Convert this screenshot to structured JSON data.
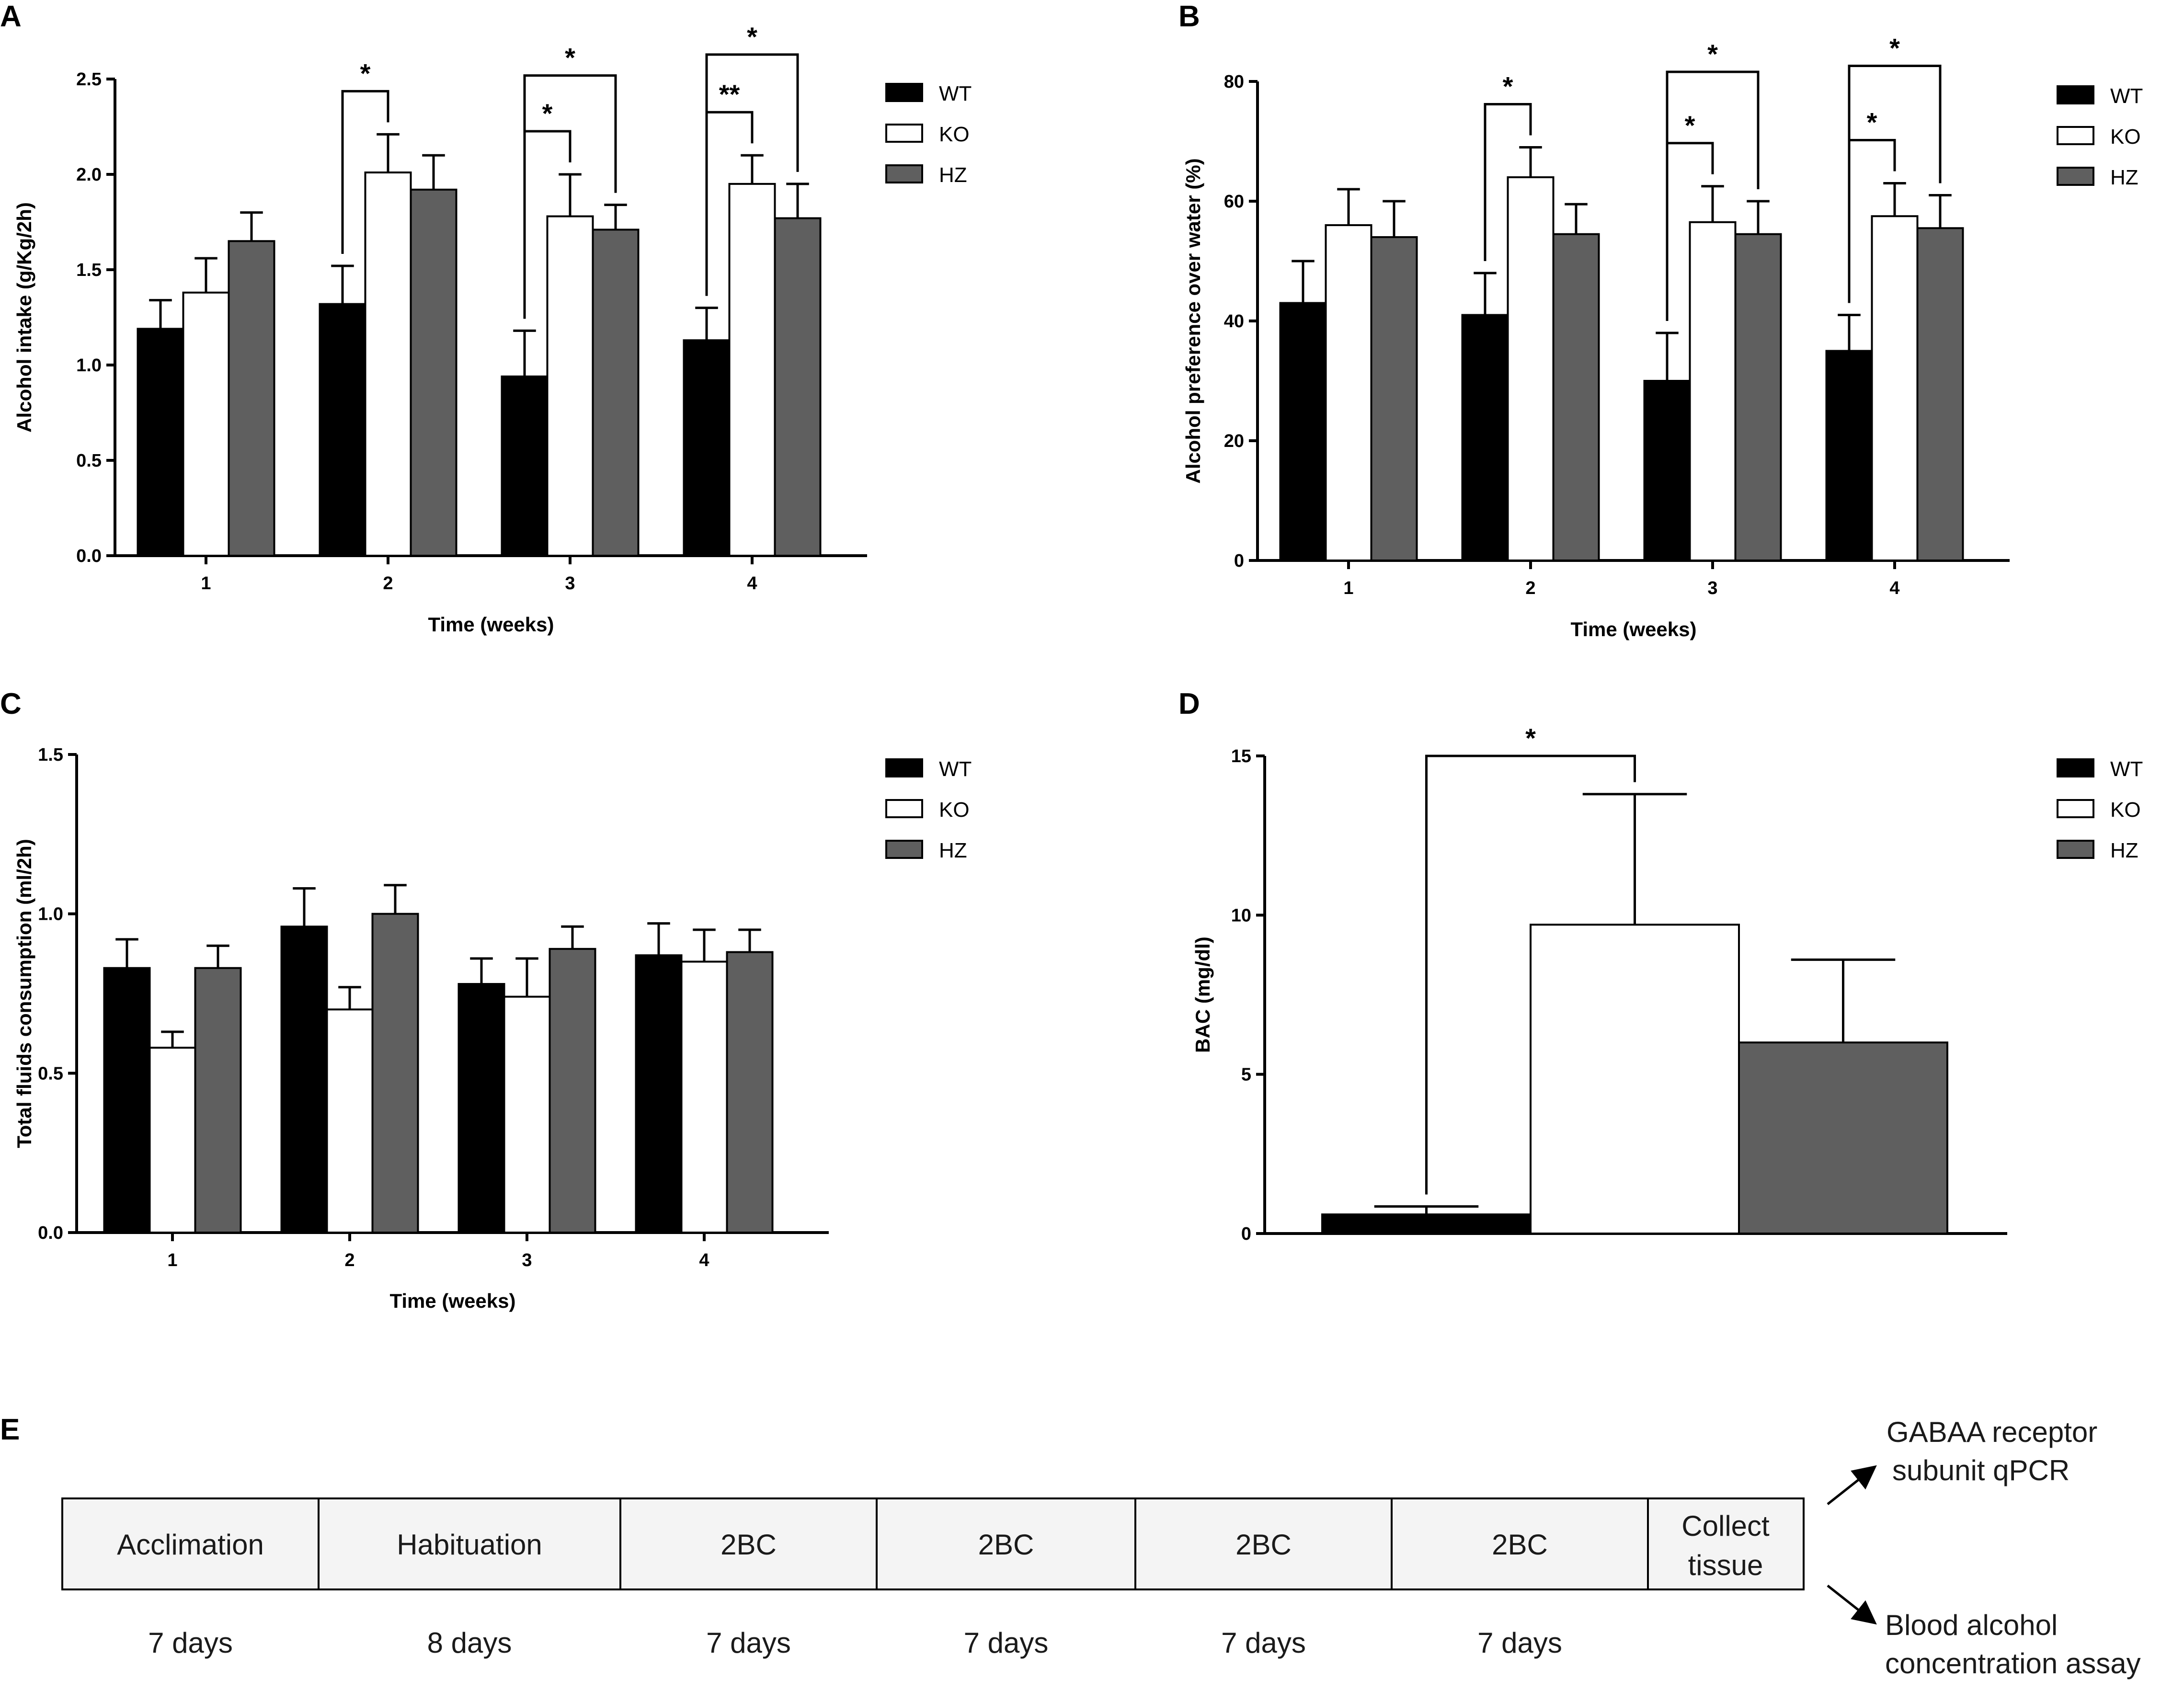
{
  "colors": {
    "WT": "#000000",
    "KO": "#ffffff",
    "HZ": "#5f5f5f"
  },
  "chart_data": [
    {
      "panel": "A",
      "type": "bar",
      "categories": [
        "1",
        "2",
        "3",
        "4"
      ],
      "series": [
        {
          "name": "WT",
          "values": [
            1.19,
            1.32,
            0.94,
            1.13
          ],
          "errors": [
            0.15,
            0.2,
            0.24,
            0.17
          ]
        },
        {
          "name": "KO",
          "values": [
            1.38,
            2.01,
            1.78,
            1.95
          ],
          "errors": [
            0.18,
            0.2,
            0.22,
            0.15
          ]
        },
        {
          "name": "HZ",
          "values": [
            1.65,
            1.92,
            1.71,
            1.77
          ],
          "errors": [
            0.15,
            0.18,
            0.13,
            0.18
          ]
        }
      ],
      "ylim": [
        0,
        2.5
      ],
      "yticks": [
        "0.0",
        "0.5",
        "1.0",
        "1.5",
        "2.0",
        "2.5"
      ],
      "xlabel": "Time (weeks)",
      "ylabel": "Alcohol intake  (g/Kg/2h)",
      "significance": [
        {
          "category": "2",
          "from": "WT",
          "to": "KO",
          "label": "*"
        },
        {
          "category": "3",
          "from": "WT",
          "to": "KO",
          "label": "*"
        },
        {
          "category": "3",
          "from": "WT",
          "to": "HZ",
          "label": "*"
        },
        {
          "category": "4",
          "from": "WT",
          "to": "KO",
          "label": "**"
        },
        {
          "category": "4",
          "from": "WT",
          "to": "HZ",
          "label": "*"
        }
      ]
    },
    {
      "panel": "B",
      "type": "bar",
      "categories": [
        "1",
        "2",
        "3",
        "4"
      ],
      "series": [
        {
          "name": "WT",
          "values": [
            43,
            41,
            30,
            35
          ],
          "errors": [
            7,
            7,
            8,
            6
          ]
        },
        {
          "name": "KO",
          "values": [
            56,
            64,
            56.5,
            57.5
          ],
          "errors": [
            6,
            5,
            6,
            5.5
          ]
        },
        {
          "name": "HZ",
          "values": [
            54,
            54.5,
            54.5,
            55.5
          ],
          "errors": [
            6,
            5,
            5.5,
            5.5
          ]
        }
      ],
      "ylim": [
        0,
        80
      ],
      "yticks": [
        "0",
        "20",
        "40",
        "60",
        "80"
      ],
      "xlabel": "Time (weeks)",
      "ylabel": "Alcohol preference over water (%)",
      "significance": [
        {
          "category": "2",
          "from": "WT",
          "to": "KO",
          "label": "*"
        },
        {
          "category": "3",
          "from": "WT",
          "to": "KO",
          "label": "*"
        },
        {
          "category": "3",
          "from": "WT",
          "to": "HZ",
          "label": "*"
        },
        {
          "category": "4",
          "from": "WT",
          "to": "KO",
          "label": "*"
        },
        {
          "category": "4",
          "from": "WT",
          "to": "HZ",
          "label": "*"
        }
      ]
    },
    {
      "panel": "C",
      "type": "bar",
      "categories": [
        "1",
        "2",
        "3",
        "4"
      ],
      "series": [
        {
          "name": "WT",
          "values": [
            0.83,
            0.96,
            0.78,
            0.87
          ],
          "errors": [
            0.09,
            0.12,
            0.08,
            0.1
          ]
        },
        {
          "name": "KO",
          "values": [
            0.58,
            0.7,
            0.74,
            0.85
          ],
          "errors": [
            0.05,
            0.07,
            0.12,
            0.1
          ]
        },
        {
          "name": "HZ",
          "values": [
            0.83,
            1.0,
            0.89,
            0.88
          ],
          "errors": [
            0.07,
            0.09,
            0.07,
            0.07
          ]
        }
      ],
      "ylim": [
        0,
        1.5
      ],
      "yticks": [
        "0.0",
        "0.5",
        "1.0",
        "1.5"
      ],
      "xlabel": "Time (weeks)",
      "ylabel": "Total fluids consumption (ml/2h)",
      "significance": []
    },
    {
      "panel": "D",
      "type": "bar",
      "categories": [
        ""
      ],
      "series": [
        {
          "name": "WT",
          "values": [
            0.6
          ],
          "errors": [
            0.25
          ]
        },
        {
          "name": "KO",
          "values": [
            9.7
          ],
          "errors": [
            4.1
          ]
        },
        {
          "name": "HZ",
          "values": [
            6.0
          ],
          "errors": [
            2.6
          ]
        }
      ],
      "ylim": [
        0,
        15
      ],
      "yticks": [
        "0",
        "5",
        "10",
        "15"
      ],
      "xlabel": "",
      "ylabel": "BAC (mg/dl)",
      "significance": [
        {
          "category": "",
          "from": "WT",
          "to": "KO",
          "label": "*"
        }
      ]
    }
  ],
  "timeline": {
    "panel": "E",
    "boxes": [
      "Acclimation",
      "Habituation",
      "2BC",
      "2BC",
      "2BC",
      "2BC"
    ],
    "collect": [
      "Collect",
      "tissue"
    ],
    "durations": [
      "7 days",
      "8 days",
      "7 days",
      "7 days",
      "7 days",
      "7 days"
    ],
    "outputs": {
      "top": [
        "GABAA receptor",
        "subunit qPCR"
      ],
      "bottom": [
        "Blood alcohol",
        "concentration assay"
      ]
    }
  }
}
